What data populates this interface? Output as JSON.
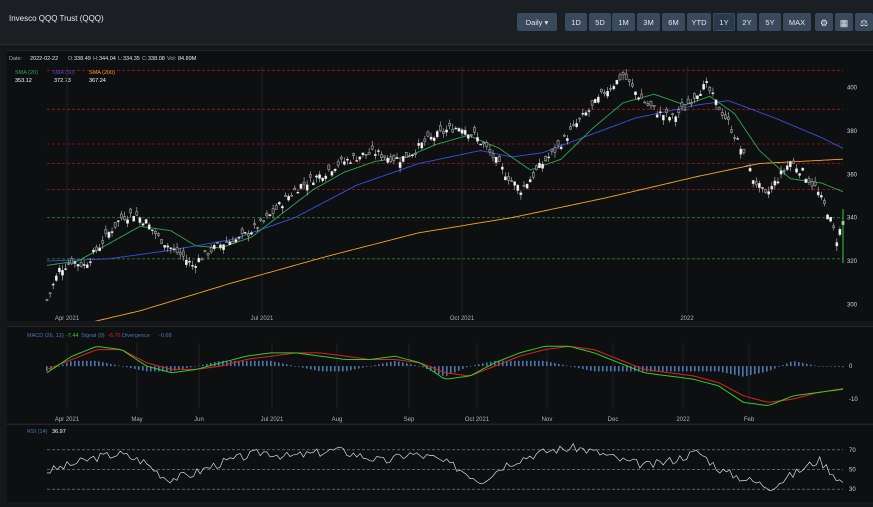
{
  "header": {
    "title": "Invesco QQQ Trust (QQQ)",
    "interval_label": "Daily",
    "ranges": [
      "1D",
      "5D",
      "1M",
      "3M",
      "6M",
      "YTD",
      "1Y",
      "2Y",
      "5Y",
      "MAX"
    ],
    "active_range": "1Y",
    "tool_icons": [
      "settings-icon",
      "calculator-icon",
      "scale-icon"
    ]
  },
  "price_panel": {
    "ohlc": {
      "date_label": "Date:",
      "date": "2022-02-22",
      "o_label": "O:",
      "o": "338.49",
      "h_label": "H:",
      "h": "344.04",
      "l_label": "L:",
      "l": "334.35",
      "c_label": "C:",
      "c": "338.08",
      "v_label": "Vol:",
      "v": "84.89M"
    },
    "sma": [
      {
        "label": "SMA (20)",
        "value": "353.12",
        "color": "#2fa84f"
      },
      {
        "label": "SMA (50)",
        "value": "372.73",
        "color": "#3b4fe0"
      },
      {
        "label": "SMA (200)",
        "value": "367.24",
        "color": "#f5a623"
      }
    ]
  },
  "macd_panel": {
    "label": "MACD (26, 12)",
    "signal_label": "Signal (9)",
    "divergence_label": "Divergence",
    "macd_value": "-7.44",
    "signal_value": "-6.76",
    "divergence_value": "-0.68"
  },
  "rsi_panel": {
    "label": "RSI (14)",
    "value": "36.97"
  },
  "colors": {
    "up": "#f2f2f2",
    "down": "#d4d4d4",
    "sma20": "#2fa84f",
    "sma50": "#3b4fe0",
    "sma200": "#f5a623",
    "macd": "#2fcc2f",
    "signal": "#e02020",
    "divergence": "#4a78b5",
    "rsi": "#d8d8d8",
    "red_level": "#a01818",
    "green_level": "#2e7d32"
  },
  "chart_data": {
    "type": "candlestick",
    "ylim": [
      296,
      410
    ],
    "y_ticks": [
      300,
      320,
      340,
      360,
      380,
      400
    ],
    "x_labels": [
      "Apr 2021",
      "Jul 2021",
      "Oct 2021",
      "2022"
    ],
    "red_levels": [
      408,
      390,
      374,
      365,
      353
    ],
    "green_levels": [
      340,
      321
    ],
    "close_path": [
      [
        0,
        302
      ],
      [
        4,
        316
      ],
      [
        8,
        320
      ],
      [
        12,
        318
      ],
      [
        16,
        325
      ],
      [
        20,
        333
      ],
      [
        24,
        340
      ],
      [
        28,
        342
      ],
      [
        32,
        338
      ],
      [
        36,
        331
      ],
      [
        40,
        326
      ],
      [
        44,
        322
      ],
      [
        47,
        318
      ],
      [
        50,
        322
      ],
      [
        54,
        326
      ],
      [
        58,
        329
      ],
      [
        62,
        330
      ],
      [
        66,
        334
      ],
      [
        70,
        338
      ],
      [
        74,
        344
      ],
      [
        78,
        350
      ],
      [
        82,
        355
      ],
      [
        86,
        358
      ],
      [
        90,
        361
      ],
      [
        94,
        365
      ],
      [
        98,
        367
      ],
      [
        102,
        369
      ],
      [
        106,
        370
      ],
      [
        110,
        368
      ],
      [
        114,
        367
      ],
      [
        118,
        370
      ],
      [
        122,
        375
      ],
      [
        126,
        378
      ],
      [
        130,
        381
      ],
      [
        134,
        382
      ],
      [
        138,
        378
      ],
      [
        142,
        372
      ],
      [
        146,
        364
      ],
      [
        150,
        357
      ],
      [
        153,
        353
      ],
      [
        156,
        358
      ],
      [
        160,
        365
      ],
      [
        164,
        371
      ],
      [
        168,
        378
      ],
      [
        172,
        385
      ],
      [
        176,
        391
      ],
      [
        180,
        398
      ],
      [
        184,
        403
      ],
      [
        186,
        406
      ],
      [
        190,
        398
      ],
      [
        194,
        392
      ],
      [
        198,
        388
      ],
      [
        202,
        386
      ],
      [
        206,
        391
      ],
      [
        210,
        398
      ],
      [
        213,
        401
      ],
      [
        216,
        393
      ],
      [
        220,
        384
      ],
      [
        224,
        372
      ],
      [
        228,
        358
      ],
      [
        232,
        350
      ],
      [
        236,
        358
      ],
      [
        240,
        366
      ],
      [
        244,
        361
      ],
      [
        248,
        354
      ],
      [
        252,
        343
      ],
      [
        255,
        330
      ],
      [
        257,
        338
      ]
    ],
    "sma20_path": [
      [
        0,
        318
      ],
      [
        10,
        320
      ],
      [
        20,
        328
      ],
      [
        30,
        336
      ],
      [
        40,
        334
      ],
      [
        48,
        327
      ],
      [
        56,
        326
      ],
      [
        66,
        331
      ],
      [
        76,
        342
      ],
      [
        86,
        353
      ],
      [
        96,
        361
      ],
      [
        106,
        366
      ],
      [
        116,
        368
      ],
      [
        126,
        374
      ],
      [
        136,
        378
      ],
      [
        146,
        372
      ],
      [
        156,
        362
      ],
      [
        166,
        367
      ],
      [
        176,
        381
      ],
      [
        186,
        393
      ],
      [
        196,
        397
      ],
      [
        206,
        392
      ],
      [
        214,
        396
      ],
      [
        222,
        388
      ],
      [
        230,
        371
      ],
      [
        240,
        358
      ],
      [
        250,
        356
      ],
      [
        257,
        352
      ]
    ],
    "sma50_path": [
      [
        0,
        320
      ],
      [
        20,
        321
      ],
      [
        40,
        325
      ],
      [
        60,
        330
      ],
      [
        80,
        340
      ],
      [
        100,
        355
      ],
      [
        120,
        365
      ],
      [
        140,
        371
      ],
      [
        150,
        368
      ],
      [
        160,
        370
      ],
      [
        175,
        378
      ],
      [
        190,
        386
      ],
      [
        210,
        392
      ],
      [
        220,
        394
      ],
      [
        235,
        386
      ],
      [
        250,
        377
      ],
      [
        257,
        372
      ]
    ],
    "sma200_path": [
      [
        0,
        287
      ],
      [
        30,
        297
      ],
      [
        60,
        310
      ],
      [
        90,
        322
      ],
      [
        120,
        333
      ],
      [
        150,
        340
      ],
      [
        180,
        349
      ],
      [
        210,
        359
      ],
      [
        230,
        365
      ],
      [
        257,
        367
      ]
    ],
    "macd": {
      "xlabels": [
        "Apr 2021",
        "May",
        "Jun",
        "Jul 2021",
        "Aug",
        "Sep",
        "Oct 2021",
        "Nov",
        "Dec",
        "2022",
        "Feb"
      ],
      "y_ticks": [
        0,
        -10
      ],
      "ylim": [
        -13,
        7
      ],
      "values": [
        -2,
        3,
        6,
        5,
        0,
        -2,
        -1,
        1,
        3,
        4,
        4,
        3,
        2,
        2,
        3,
        1,
        -4,
        -3,
        1,
        4,
        6,
        6,
        4,
        1,
        -2,
        -3,
        -4,
        -6,
        -11,
        -12,
        -9,
        -8,
        -7
      ],
      "signal": [
        -1,
        2,
        5,
        5,
        1,
        -1,
        -1,
        0,
        2,
        3,
        4,
        4,
        3,
        2,
        2,
        1,
        -2,
        -3,
        0,
        3,
        5,
        6,
        5,
        2,
        -1,
        -2,
        -3,
        -5,
        -9,
        -11,
        -10,
        -8,
        -6.8
      ]
    },
    "rsi": {
      "y_ticks": [
        70,
        50,
        30
      ],
      "ylim": [
        20,
        85
      ],
      "values": [
        48,
        55,
        62,
        66,
        58,
        40,
        45,
        55,
        62,
        68,
        63,
        66,
        70,
        64,
        58,
        66,
        62,
        52,
        38,
        55,
        64,
        70,
        72,
        66,
        58,
        54,
        60,
        68,
        48,
        40,
        32,
        46,
        60,
        36
      ]
    }
  }
}
